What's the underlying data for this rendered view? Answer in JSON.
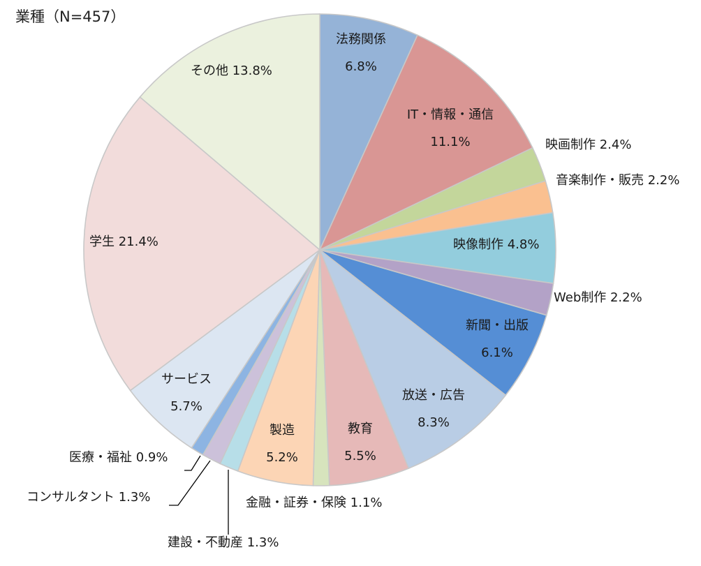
{
  "chart_data": {
    "type": "pie",
    "title": "業種（N=457）",
    "slices": [
      {
        "label": "法務関係",
        "value_text": "6.8%",
        "value": 6.8,
        "color": "#95B3D7"
      },
      {
        "label": "IT・情報・通信",
        "value_text": "11.1%",
        "value": 11.1,
        "color": "#D99694"
      },
      {
        "label": "映画制作",
        "value_text": "2.4%",
        "value": 2.4,
        "color": "#C3D69B"
      },
      {
        "label": "音楽制作・販売",
        "value_text": "2.2%",
        "value": 2.2,
        "color": "#FAC090"
      },
      {
        "label": "映像制作",
        "value_text": "4.8%",
        "value": 4.8,
        "color": "#93CDDD"
      },
      {
        "label": "Web制作",
        "value_text": "2.2%",
        "value": 2.2,
        "color": "#B3A2C7"
      },
      {
        "label": "新聞・出版",
        "value_text": "6.1%",
        "value": 6.1,
        "color": "#558ED5"
      },
      {
        "label": "放送・広告",
        "value_text": "8.3%",
        "value": 8.3,
        "color": "#B9CDE5"
      },
      {
        "label": "教育",
        "value_text": "5.5%",
        "value": 5.5,
        "color": "#E6B9B8"
      },
      {
        "label": "金融・証券・保険",
        "value_text": "1.1%",
        "value": 1.1,
        "color": "#D7E4BD"
      },
      {
        "label": "製造",
        "value_text": "5.2%",
        "value": 5.2,
        "color": "#FCD5B5"
      },
      {
        "label": "建設・不動産",
        "value_text": "1.3%",
        "value": 1.3,
        "color": "#B7DEE8"
      },
      {
        "label": "コンサルタント",
        "value_text": "1.3%",
        "value": 1.3,
        "color": "#CCC1DA"
      },
      {
        "label": "医療・福祉",
        "value_text": "0.9%",
        "value": 0.9,
        "color": "#8DB4E2"
      },
      {
        "label": "サービス",
        "value_text": "5.7%",
        "value": 5.7,
        "color": "#DCE6F2"
      },
      {
        "label": "学生",
        "value_text": "21.4%",
        "value": 21.4,
        "color": "#F2DCDB"
      },
      {
        "label": "その他",
        "value_text": "13.8%",
        "value": 13.8,
        "color": "#EBF1DE"
      }
    ]
  }
}
